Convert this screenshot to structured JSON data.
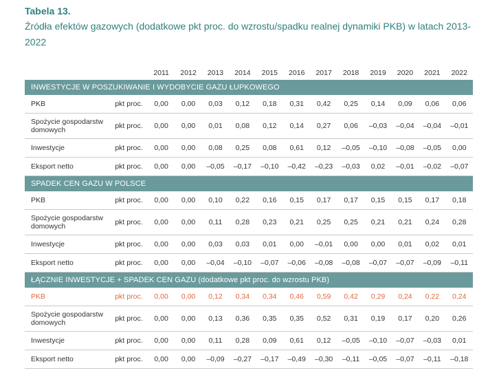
{
  "table_label": "Tabela 13.",
  "table_title": "Źródła efektów gazowych (dodatkowe pkt proc. do wzrostu/spadku realnej dynamiki PKB) w latach 2013-2022",
  "years": [
    "2011",
    "2012",
    "2013",
    "2014",
    "2015",
    "2016",
    "2017",
    "2018",
    "2019",
    "2020",
    "2021",
    "2022"
  ],
  "sections": [
    {
      "title": "INWESTYCJE W POSZUKIWANIE I WYDOBYCIE GAZU ŁUPKOWEGO",
      "rows": [
        {
          "name": "PKB",
          "unit": "pkt proc.",
          "values": [
            "0,00",
            "0,00",
            "0,03",
            "0,12",
            "0,18",
            "0,31",
            "0,42",
            "0,25",
            "0,14",
            "0,09",
            "0,06",
            "0,06"
          ]
        },
        {
          "name": "Spożycie gospodarstw domowych",
          "unit": "pkt proc.",
          "values": [
            "0,00",
            "0,00",
            "0,01",
            "0,08",
            "0,12",
            "0,14",
            "0,27",
            "0,06",
            "-0,03",
            "-0,04",
            "-0,04",
            "-0,01"
          ]
        },
        {
          "name": "Inwestycje",
          "unit": "pkt proc.",
          "values": [
            "0,00",
            "0,00",
            "0,08",
            "0,25",
            "0,08",
            "0,61",
            "0,12",
            "-0,05",
            "-0,10",
            "-0,08",
            "-0,05",
            "0,00"
          ]
        },
        {
          "name": "Eksport netto",
          "unit": "pkt proc.",
          "values": [
            "0,00",
            "0,00",
            "-0,05",
            "-0,17",
            "-0,10",
            "-0,42",
            "-0,23",
            "-0,03",
            "0,02",
            "-0,01",
            "-0,02",
            "-0,07"
          ]
        }
      ]
    },
    {
      "title": "SPADEK CEN GAZU W POLSCE",
      "rows": [
        {
          "name": "PKB",
          "unit": "pkt proc.",
          "values": [
            "0,00",
            "0,00",
            "0,10",
            "0,22",
            "0,16",
            "0,15",
            "0,17",
            "0,17",
            "0,15",
            "0,15",
            "0,17",
            "0,18"
          ]
        },
        {
          "name": "Spożycie gospodarstw domowych",
          "unit": "pkt proc.",
          "values": [
            "0,00",
            "0,00",
            "0,11",
            "0,28",
            "0,23",
            "0,21",
            "0,25",
            "0,25",
            "0,21",
            "0,21",
            "0,24",
            "0,28"
          ]
        },
        {
          "name": "Inwestycje",
          "unit": "pkt proc.",
          "values": [
            "0,00",
            "0,00",
            "0,03",
            "0,03",
            "0,01",
            "0,00",
            "-0,01",
            "0,00",
            "0,00",
            "0,01",
            "0,02",
            "0,01"
          ]
        },
        {
          "name": "Eksport netto",
          "unit": "pkt proc.",
          "values": [
            "0,00",
            "0,00",
            "-0,04",
            "-0,10",
            "-0,07",
            "-0,06",
            "-0,08",
            "-0,08",
            "-0,07",
            "-0,07",
            "-0,09",
            "-0,11"
          ]
        }
      ]
    },
    {
      "title": "ŁĄCZNIE INWESTYCJE + SPADEK CEN GAZU (dodatkowe pkt proc. do wzrostu PKB)",
      "rows": [
        {
          "name": "PKB",
          "unit": "pkt proc.",
          "highlight": true,
          "values": [
            "0,00",
            "0,00",
            "0,12",
            "0,34",
            "0,34",
            "0,46",
            "0,59",
            "0,42",
            "0,29",
            "0,24",
            "0,22",
            "0,24"
          ]
        },
        {
          "name": "Spożycie gospodarstw domowych",
          "unit": "pkt proc.",
          "values": [
            "0,00",
            "0,00",
            "0,13",
            "0,36",
            "0,35",
            "0,35",
            "0,52",
            "0,31",
            "0,19",
            "0,17",
            "0,20",
            "0,26"
          ]
        },
        {
          "name": "Inwestycje",
          "unit": "pkt proc.",
          "values": [
            "0,00",
            "0,00",
            "0,11",
            "0,28",
            "0,09",
            "0,61",
            "0,12",
            "-0,05",
            "-0,10",
            "-0,07",
            "-0,03",
            "0,01"
          ]
        },
        {
          "name": "Eksport netto",
          "unit": "pkt proc.",
          "values": [
            "0,00",
            "0,00",
            "-0,09",
            "-0,27",
            "-0,17",
            "-0,49",
            "-0,30",
            "-0,11",
            "-0,05",
            "-0,07",
            "-0,11",
            "-0,18"
          ]
        }
      ]
    }
  ],
  "colors": {
    "title": "#2f7f7f",
    "section_bg": "#6a9a9c",
    "highlight": "#e0683e"
  }
}
